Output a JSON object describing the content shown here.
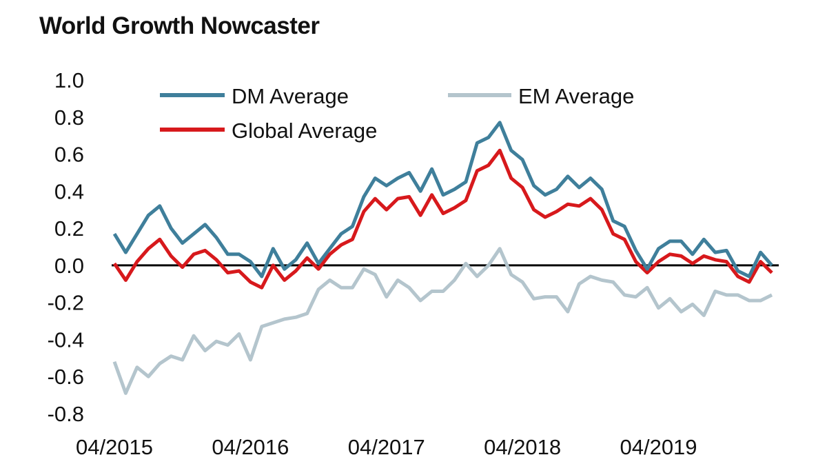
{
  "chart_data": {
    "type": "line",
    "title": "World Growth Nowcaster",
    "xlabel": "",
    "ylabel": "",
    "ylim": [
      -0.8,
      1.0
    ],
    "yticks": [
      "1.0",
      "0.8",
      "0.6",
      "0.4",
      "0.2",
      "0.0",
      "-0.2",
      "-0.4",
      "-0.6",
      "-0.8"
    ],
    "xticks": [
      "04/2015",
      "04/2016",
      "04/2017",
      "04/2018",
      "04/2019"
    ],
    "x_start": "2015-04",
    "x_end": "2020-03",
    "grid": false,
    "zero_line": true,
    "legend": {
      "position": "top",
      "entries": [
        "DM Average",
        "EM Average",
        "Global Average"
      ]
    },
    "series": [
      {
        "name": "DM Average",
        "color": "#3f7f9b",
        "values": [
          0.17,
          0.07,
          0.17,
          0.27,
          0.32,
          0.2,
          0.12,
          0.17,
          0.22,
          0.15,
          0.06,
          0.06,
          0.02,
          -0.06,
          0.09,
          -0.02,
          0.03,
          0.12,
          0.01,
          0.09,
          0.17,
          0.21,
          0.37,
          0.47,
          0.43,
          0.47,
          0.5,
          0.4,
          0.52,
          0.38,
          0.41,
          0.45,
          0.66,
          0.69,
          0.77,
          0.62,
          0.57,
          0.43,
          0.38,
          0.41,
          0.48,
          0.42,
          0.47,
          0.41,
          0.24,
          0.21,
          0.08,
          -0.02,
          0.09,
          0.13,
          0.13,
          0.06,
          0.14,
          0.07,
          0.08,
          -0.03,
          -0.06,
          0.07,
          0.0
        ]
      },
      {
        "name": "EM Average",
        "color": "#b4c5cd",
        "values": [
          -0.52,
          -0.69,
          -0.55,
          -0.6,
          -0.53,
          -0.49,
          -0.51,
          -0.38,
          -0.46,
          -0.41,
          -0.43,
          -0.37,
          -0.51,
          -0.33,
          -0.31,
          -0.29,
          -0.28,
          -0.26,
          -0.13,
          -0.08,
          -0.12,
          -0.12,
          -0.02,
          -0.05,
          -0.17,
          -0.08,
          -0.12,
          -0.19,
          -0.14,
          -0.14,
          -0.08,
          0.01,
          -0.06,
          0.0,
          0.09,
          -0.05,
          -0.09,
          -0.18,
          -0.17,
          -0.17,
          -0.25,
          -0.1,
          -0.06,
          -0.08,
          -0.09,
          -0.16,
          -0.17,
          -0.12,
          -0.23,
          -0.18,
          -0.25,
          -0.21,
          -0.27,
          -0.14,
          -0.16,
          -0.16,
          -0.19,
          -0.19,
          -0.16
        ]
      },
      {
        "name": "Global Average",
        "color": "#d7191c",
        "values": [
          0.01,
          -0.08,
          0.02,
          0.09,
          0.14,
          0.05,
          -0.01,
          0.06,
          0.08,
          0.03,
          -0.04,
          -0.03,
          -0.09,
          -0.12,
          0.0,
          -0.08,
          -0.03,
          0.04,
          -0.02,
          0.06,
          0.11,
          0.14,
          0.29,
          0.36,
          0.3,
          0.36,
          0.37,
          0.27,
          0.38,
          0.28,
          0.31,
          0.35,
          0.51,
          0.54,
          0.62,
          0.47,
          0.42,
          0.3,
          0.26,
          0.29,
          0.33,
          0.32,
          0.36,
          0.3,
          0.17,
          0.14,
          0.02,
          -0.04,
          0.02,
          0.06,
          0.05,
          0.01,
          0.05,
          0.03,
          0.02,
          -0.06,
          -0.09,
          0.02,
          -0.04
        ]
      }
    ]
  }
}
